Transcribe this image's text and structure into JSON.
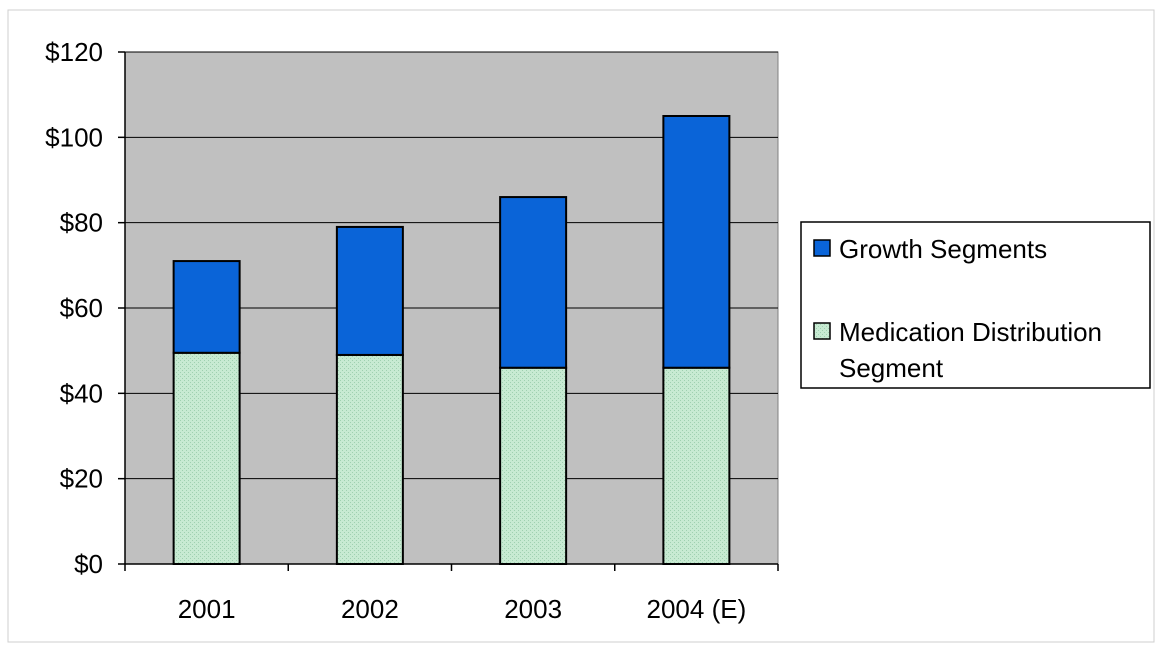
{
  "chart_data": {
    "type": "bar",
    "stacked": true,
    "categories": [
      "2001",
      "2002",
      "2003",
      "2004 (E)"
    ],
    "series": [
      {
        "name": "Medication Distribution Segment",
        "legend_lines": [
          "Medication Distribution",
          "Segment"
        ],
        "values": [
          49.5,
          49,
          46,
          46
        ],
        "color": "#c7ead2"
      },
      {
        "name": "Growth Segments",
        "legend_lines": [
          "Growth Segments"
        ],
        "values": [
          21.5,
          30,
          40,
          59
        ],
        "color": "#0a64d8"
      }
    ],
    "ylim": [
      0,
      120
    ],
    "yticks": [
      0,
      20,
      40,
      60,
      80,
      100,
      120
    ],
    "ytick_labels": [
      "$0",
      "$20",
      "$40",
      "$60",
      "$80",
      "$100",
      "$120"
    ],
    "grid": true,
    "plot_background": "#c0c0c0",
    "legend_position": "right",
    "legend_order": [
      "Growth Segments",
      "Medication Distribution Segment"
    ],
    "title": "",
    "xlabel": "",
    "ylabel": ""
  },
  "colors": {
    "plot_background": "#c0c0c0",
    "gridline": "#000000",
    "bar_outline": "#000000",
    "growth": "#0a64d8",
    "medication": "#c7ead2"
  }
}
